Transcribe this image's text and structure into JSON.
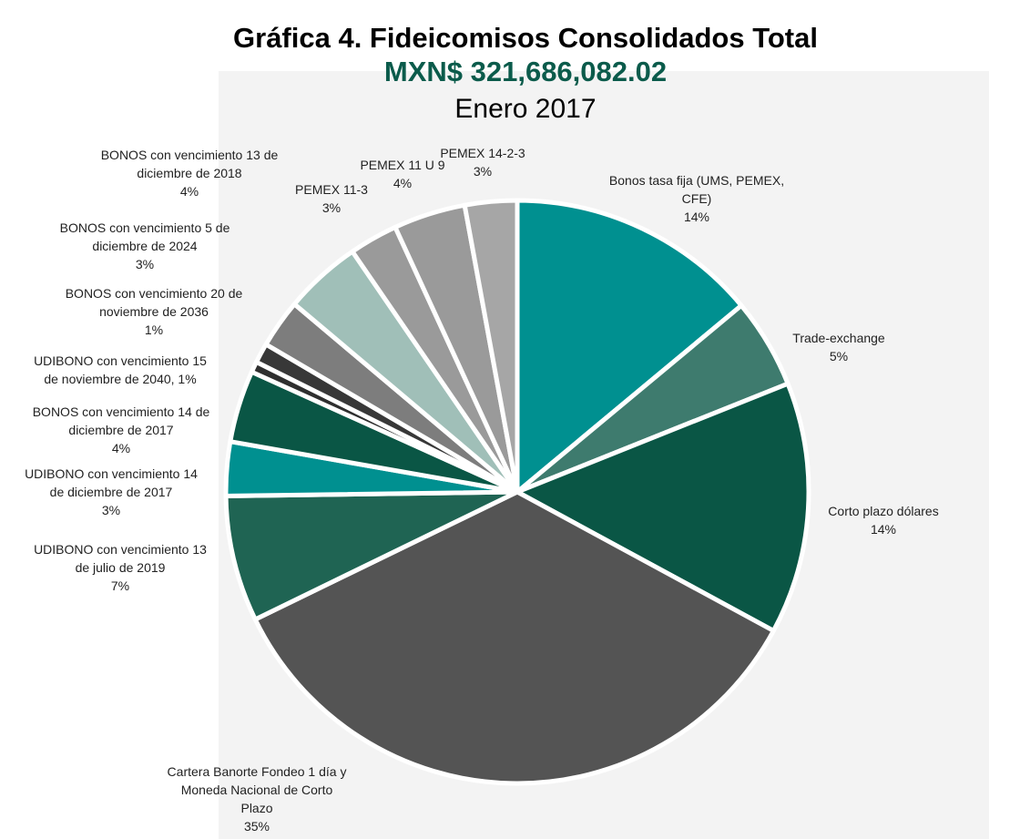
{
  "chart_data": {
    "type": "pie",
    "title": "Gráfica 4. Fideicomisos Consolidados Total",
    "subtitle": "MXN$ 321,686,082.02",
    "subtitle2": "Enero 2017",
    "slices": [
      {
        "label_lines": [
          "Bonos tasa fija (UMS, PEMEX,",
          "CFE)",
          "14%"
        ],
        "value": 14,
        "color": "#009090"
      },
      {
        "label_lines": [
          "Trade-exchange",
          "5%"
        ],
        "value": 5,
        "color": "#3e7b6e"
      },
      {
        "label_lines": [
          "Corto plazo dólares",
          "14%"
        ],
        "value": 14,
        "color": "#0a5645"
      },
      {
        "label_lines": [
          "Cartera Banorte Fondeo 1 día y",
          "Moneda Nacional de Corto",
          "Plazo",
          "35%"
        ],
        "value": 35,
        "color": "#545454"
      },
      {
        "label_lines": [
          "UDIBONO con vencimiento 13",
          "de julio de 2019",
          "7%"
        ],
        "value": 7,
        "color": "#1f6453"
      },
      {
        "label_lines": [
          "UDIBONO con vencimiento 14",
          "de diciembre de 2017",
          "3%"
        ],
        "value": 3,
        "color": "#009090"
      },
      {
        "label_lines": [
          "BONOS con vencimiento 14 de",
          "diciembre de 2017",
          "4%"
        ],
        "value": 4,
        "color": "#0a5645"
      },
      {
        "label_lines": [
          "UDIBONO con vencimiento 15",
          "de noviembre de 2040, 1%"
        ],
        "value": 0.6,
        "color": "#2f2f2f"
      },
      {
        "label_lines": [
          "BONOS con vencimiento 20 de",
          "noviembre de 2036",
          "1%"
        ],
        "value": 1.1,
        "color": "#383838"
      },
      {
        "label_lines": [
          "BONOS con vencimiento 5 de",
          "diciembre de 2024",
          "3%"
        ],
        "value": 2.7,
        "color": "#7d7d7d"
      },
      {
        "label_lines": [
          "BONOS con vencimiento 13 de",
          "diciembre de 2018",
          "4%"
        ],
        "value": 4.3,
        "color": "#a0bfb8"
      },
      {
        "label_lines": [
          "PEMEX 11-3",
          "3%"
        ],
        "value": 2.7,
        "color": "#9a9a9a"
      },
      {
        "label_lines": [
          "PEMEX 11 U 9",
          "4%"
        ],
        "value": 4.0,
        "color": "#9a9a9a"
      },
      {
        "label_lines": [
          "PEMEX 14-2-3",
          "3%"
        ],
        "value": 2.9,
        "color": "#a6a6a6"
      }
    ]
  }
}
